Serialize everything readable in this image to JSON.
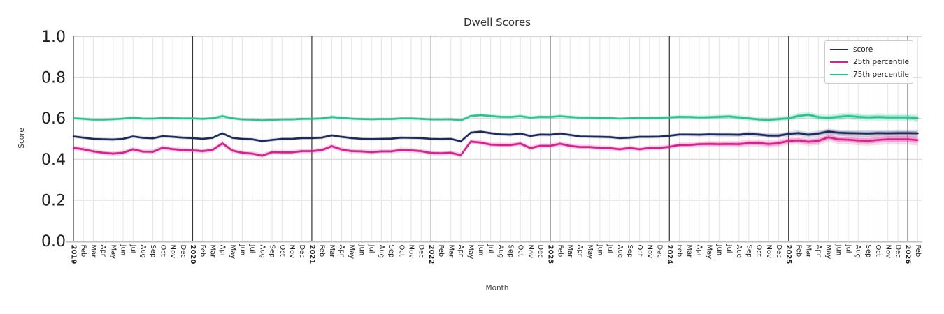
{
  "figure": {
    "title": "Dwell Scores",
    "xlabel": "Month",
    "ylabel": "Score"
  },
  "style": {
    "title_color": "#333333",
    "tick_label_color": "#1f1f1f",
    "axis_label_color": "#3c3c3c",
    "year_line_color": "#333333",
    "month_grid_color": "#e4e4e4",
    "horizontal_grid_color": "#d6d6d6",
    "bottom_spine_color": "#c0c0c0",
    "legend_border_color": "#cccccc"
  },
  "chart_data": {
    "type": "line",
    "title": "Dwell Scores",
    "xlabel": "Month",
    "ylabel": "Score",
    "ylim": [
      0.0,
      1.0
    ],
    "yticks": [
      0.0,
      0.2,
      0.4,
      0.6,
      0.8,
      1.0
    ],
    "grid": true,
    "legend_position": "upper right",
    "x_tick_labels": [
      "2019",
      "Feb",
      "Mar",
      "Apr",
      "May",
      "Jun",
      "Jul",
      "Aug",
      "Sep",
      "Oct",
      "Nov",
      "Dec",
      "2020",
      "Feb",
      "Mar",
      "Apr",
      "May",
      "Jun",
      "Jul",
      "Aug",
      "Sep",
      "Oct",
      "Nov",
      "Dec",
      "2021",
      "Feb",
      "Mar",
      "Apr",
      "May",
      "Jun",
      "Jul",
      "Aug",
      "Sep",
      "Oct",
      "Nov",
      "Dec",
      "2022",
      "Feb",
      "Mar",
      "Apr",
      "May",
      "Jun",
      "Jul",
      "Aug",
      "Sep",
      "Oct",
      "Nov",
      "Dec",
      "2023",
      "Feb",
      "Mar",
      "Apr",
      "May",
      "Jun",
      "Jul",
      "Aug",
      "Sep",
      "Oct",
      "Nov",
      "Dec",
      "2024",
      "Feb",
      "Mar",
      "Apr",
      "May",
      "Jun",
      "Jul",
      "Aug",
      "Sep",
      "Oct",
      "Nov",
      "Dec",
      "2025",
      "Feb",
      "Mar",
      "Apr",
      "May",
      "Jun",
      "Jul",
      "Aug",
      "Sep",
      "Oct",
      "Nov",
      "Dec",
      "2026",
      "Feb"
    ],
    "year_line_indices": [
      0,
      12,
      24,
      36,
      48,
      60,
      72,
      84
    ],
    "confidence_band": {
      "base_halfwidth": 0.01,
      "widen_start_index": 60,
      "widen_per_month": 0.0005
    },
    "series": [
      {
        "name": "score",
        "color": "#1c2a5e",
        "band_scale": 0.8,
        "values": [
          0.512,
          0.506,
          0.5,
          0.498,
          0.497,
          0.5,
          0.512,
          0.505,
          0.503,
          0.513,
          0.51,
          0.506,
          0.504,
          0.5,
          0.505,
          0.527,
          0.505,
          0.5,
          0.498,
          0.489,
          0.495,
          0.5,
          0.5,
          0.504,
          0.504,
          0.506,
          0.517,
          0.51,
          0.504,
          0.5,
          0.499,
          0.5,
          0.501,
          0.506,
          0.505,
          0.504,
          0.5,
          0.499,
          0.5,
          0.488,
          0.53,
          0.535,
          0.528,
          0.522,
          0.52,
          0.526,
          0.514,
          0.521,
          0.52,
          0.526,
          0.519,
          0.512,
          0.511,
          0.51,
          0.509,
          0.504,
          0.506,
          0.51,
          0.51,
          0.511,
          0.515,
          0.521,
          0.521,
          0.52,
          0.522,
          0.521,
          0.521,
          0.52,
          0.525,
          0.521,
          0.516,
          0.516,
          0.524,
          0.528,
          0.52,
          0.526,
          0.536,
          0.53,
          0.528,
          0.527,
          0.526,
          0.528,
          0.527,
          0.528,
          0.528,
          0.527
        ]
      },
      {
        "name": "25th percentile",
        "color": "#d6218e",
        "band_scale": 1.2,
        "values": [
          0.456,
          0.449,
          0.439,
          0.432,
          0.428,
          0.432,
          0.449,
          0.438,
          0.437,
          0.457,
          0.45,
          0.445,
          0.444,
          0.44,
          0.446,
          0.478,
          0.443,
          0.432,
          0.428,
          0.418,
          0.435,
          0.434,
          0.434,
          0.44,
          0.44,
          0.445,
          0.464,
          0.448,
          0.44,
          0.439,
          0.435,
          0.439,
          0.439,
          0.446,
          0.444,
          0.44,
          0.431,
          0.43,
          0.432,
          0.42,
          0.487,
          0.482,
          0.472,
          0.47,
          0.47,
          0.477,
          0.455,
          0.466,
          0.466,
          0.476,
          0.466,
          0.46,
          0.46,
          0.456,
          0.455,
          0.449,
          0.456,
          0.449,
          0.456,
          0.456,
          0.461,
          0.47,
          0.47,
          0.474,
          0.475,
          0.474,
          0.475,
          0.474,
          0.48,
          0.48,
          0.475,
          0.479,
          0.49,
          0.492,
          0.486,
          0.49,
          0.508,
          0.498,
          0.496,
          0.492,
          0.49,
          0.495,
          0.498,
          0.498,
          0.498,
          0.494
        ]
      },
      {
        "name": "75th percentile",
        "color": "#2bc192",
        "band_scale": 0.9,
        "values": [
          0.601,
          0.598,
          0.594,
          0.594,
          0.596,
          0.599,
          0.604,
          0.599,
          0.599,
          0.602,
          0.601,
          0.6,
          0.6,
          0.598,
          0.601,
          0.611,
          0.601,
          0.595,
          0.594,
          0.59,
          0.593,
          0.595,
          0.595,
          0.598,
          0.598,
          0.6,
          0.607,
          0.603,
          0.599,
          0.597,
          0.596,
          0.597,
          0.597,
          0.6,
          0.6,
          0.598,
          0.595,
          0.595,
          0.596,
          0.59,
          0.612,
          0.616,
          0.612,
          0.608,
          0.607,
          0.611,
          0.604,
          0.608,
          0.607,
          0.611,
          0.607,
          0.604,
          0.604,
          0.602,
          0.602,
          0.599,
          0.601,
          0.602,
          0.602,
          0.603,
          0.605,
          0.608,
          0.607,
          0.605,
          0.606,
          0.608,
          0.61,
          0.605,
          0.6,
          0.595,
          0.592,
          0.597,
          0.601,
          0.612,
          0.618,
          0.606,
          0.603,
          0.608,
          0.612,
          0.608,
          0.605,
          0.607,
          0.605,
          0.605,
          0.605,
          0.601
        ]
      }
    ]
  }
}
